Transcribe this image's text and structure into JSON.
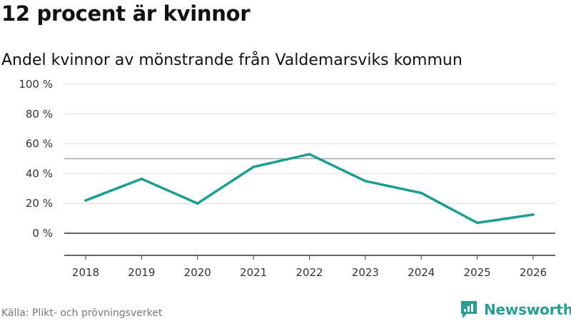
{
  "header": {
    "title": "12 procent är kvinnor",
    "subtitle": "Andel kvinnor av mönstrande från Valdemarsviks kommun"
  },
  "footer": {
    "source": "Källa: Plikt- och prövningsverket",
    "brand": "Newsworthy"
  },
  "colors": {
    "line": "#1b9e8f",
    "grid": "#dddddd",
    "reference": "#999999",
    "zero": "#333333",
    "brand": "#2a9d8f"
  },
  "chart_data": {
    "type": "line",
    "title": "Andel kvinnor av mönstrande från Valdemarsviks kommun",
    "xlabel": "",
    "ylabel": "",
    "ylim": [
      -15,
      100
    ],
    "grid": true,
    "x": [
      "2018",
      "2019",
      "2020",
      "2021",
      "2022",
      "2023",
      "2024",
      "2025",
      "2026"
    ],
    "series": [
      {
        "name": "Andel kvinnor",
        "values": [
          22,
          36.5,
          20,
          44.5,
          53,
          35,
          27,
          7,
          12.5
        ]
      }
    ],
    "y_ticks": [
      0,
      20,
      40,
      60,
      80,
      100
    ],
    "y_tick_labels": [
      "0 %",
      "20 %",
      "40 %",
      "60 %",
      "80 %",
      "100 %"
    ],
    "reference_line": 50
  }
}
